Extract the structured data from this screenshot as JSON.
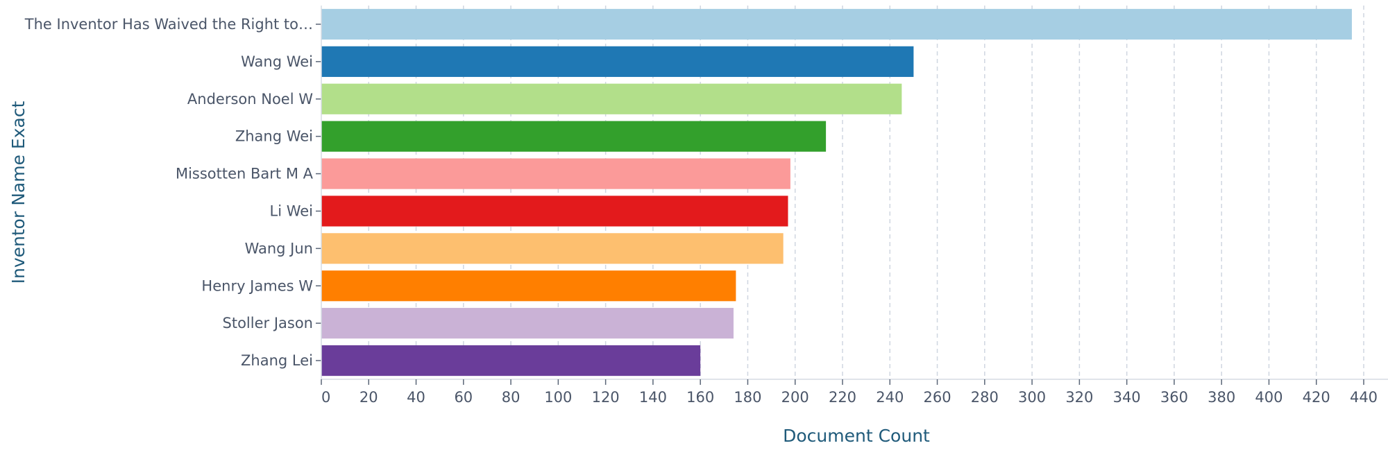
{
  "chart_data": {
    "type": "bar",
    "orientation": "horizontal",
    "title": "",
    "xlabel": "Document Count",
    "ylabel": "Inventor Name Exact",
    "categories": [
      "The Inventor Has Waived the Right to…",
      "Wang Wei",
      "Anderson Noel W",
      "Zhang Wei",
      "Missotten Bart M A",
      "Li Wei",
      "Wang Jun",
      "Henry James W",
      "Stoller Jason",
      "Zhang Lei"
    ],
    "values": [
      435,
      250,
      245,
      213,
      198,
      197,
      195,
      175,
      174,
      160
    ],
    "colors": [
      "#a6cee3",
      "#1f78b4",
      "#b2df8a",
      "#33a02c",
      "#fb9a99",
      "#e31a1c",
      "#fdbf6f",
      "#ff7f00",
      "#cab2d6",
      "#6a3d9a"
    ],
    "xlim": [
      0,
      440
    ],
    "xticks": [
      0,
      20,
      40,
      60,
      80,
      100,
      120,
      140,
      160,
      180,
      200,
      220,
      240,
      260,
      280,
      300,
      320,
      340,
      360,
      380,
      400,
      420,
      440
    ],
    "grid": "vertical dashed",
    "legend": "none"
  }
}
